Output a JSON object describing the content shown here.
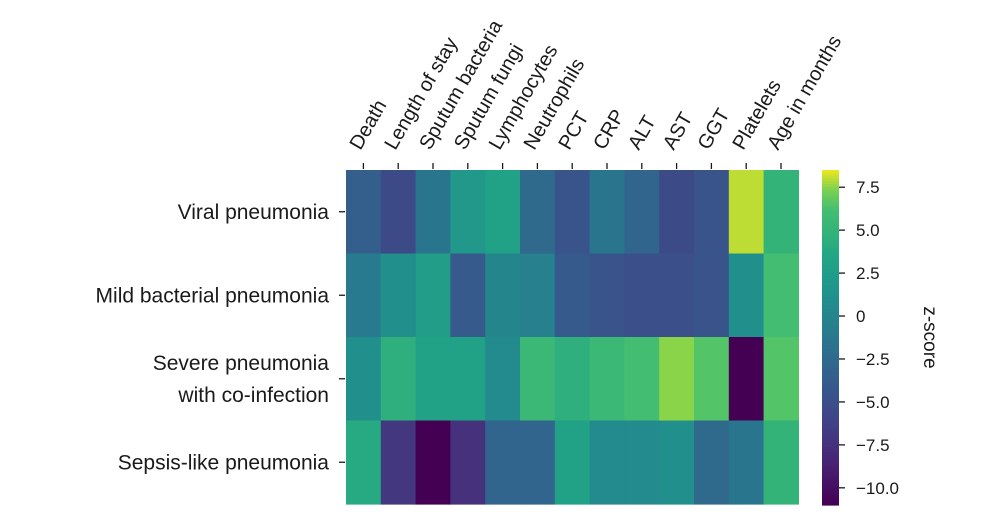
{
  "chart_data": {
    "type": "heatmap",
    "title": "",
    "colorbar_label": "z-score",
    "colorbar_range": [
      -11,
      8.5
    ],
    "colorbar_ticks": [
      "7.5",
      "5.0",
      "2.5",
      "0",
      "−2.5",
      "−5.0",
      "−7.5",
      "−10.0"
    ],
    "colorbar_tick_values": [
      7.5,
      5.0,
      2.5,
      0,
      -2.5,
      -5.0,
      -7.5,
      -10.0
    ],
    "columns": [
      "Death",
      "Length of stay",
      "Sputum bacteria",
      "Sputum fungi",
      "Lymphocytes",
      "Neutrophils",
      "PCT",
      "CRP",
      "ALT",
      "AST",
      "GGT",
      "Platelets",
      "Age in months"
    ],
    "rows": [
      {
        "label_lines": [
          "Viral pneumonia"
        ],
        "values": [
          -3.5,
          -5.5,
          -1.5,
          2.0,
          3.0,
          -2.5,
          -4.5,
          -1.5,
          -3.0,
          -5.5,
          -4.5,
          8.0,
          5.0
        ]
      },
      {
        "label_lines": [
          "Mild bacterial pneumonia"
        ],
        "values": [
          -1.0,
          1.0,
          2.5,
          -4.0,
          0.0,
          -0.5,
          -4.0,
          -4.5,
          -5.0,
          -5.0,
          -4.5,
          1.0,
          6.0
        ]
      },
      {
        "label_lines": [
          "Severe pneumonia",
          "with co-infection"
        ],
        "values": [
          1.0,
          4.5,
          3.0,
          3.0,
          0.5,
          5.5,
          4.5,
          5.5,
          6.0,
          7.5,
          6.5,
          -11.0,
          6.5
        ]
      },
      {
        "label_lines": [
          "Sepsis-like pneumonia"
        ],
        "values": [
          4.0,
          -7.0,
          -11.0,
          -7.5,
          -3.0,
          -3.0,
          3.0,
          0.5,
          0.5,
          1.0,
          -2.5,
          -1.5,
          5.0
        ]
      }
    ]
  }
}
